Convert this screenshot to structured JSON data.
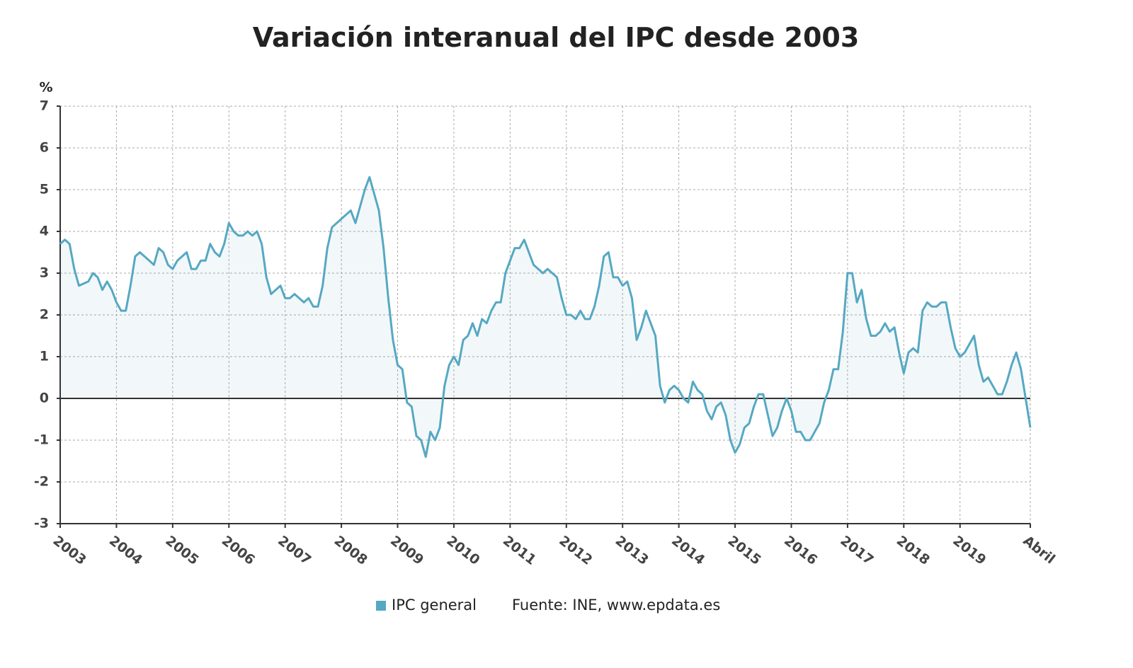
{
  "chart_data": {
    "type": "line",
    "title": "Variación interanual del IPC desde 2003",
    "y_label": "%",
    "source": "Fuente: INE, www.epdata.es",
    "categories": [
      "2003",
      null,
      null,
      null,
      null,
      null,
      null,
      null,
      null,
      null,
      null,
      null,
      "2004",
      null,
      null,
      null,
      null,
      null,
      null,
      null,
      null,
      null,
      null,
      null,
      "2005",
      null,
      null,
      null,
      null,
      null,
      null,
      null,
      null,
      null,
      null,
      null,
      "2006",
      null,
      null,
      null,
      null,
      null,
      null,
      null,
      null,
      null,
      null,
      null,
      "2007",
      null,
      null,
      null,
      null,
      null,
      null,
      null,
      null,
      null,
      null,
      null,
      "2008",
      null,
      null,
      null,
      null,
      null,
      null,
      null,
      null,
      null,
      null,
      null,
      "2009",
      null,
      null,
      null,
      null,
      null,
      null,
      null,
      null,
      null,
      null,
      null,
      "2010",
      null,
      null,
      null,
      null,
      null,
      null,
      null,
      null,
      null,
      null,
      null,
      "2011",
      null,
      null,
      null,
      null,
      null,
      null,
      null,
      null,
      null,
      null,
      null,
      "2012",
      null,
      null,
      null,
      null,
      null,
      null,
      null,
      null,
      null,
      null,
      null,
      "2013",
      null,
      null,
      null,
      null,
      null,
      null,
      null,
      null,
      null,
      null,
      null,
      "2014",
      null,
      null,
      null,
      null,
      null,
      null,
      null,
      null,
      null,
      null,
      null,
      "2015",
      null,
      null,
      null,
      null,
      null,
      null,
      null,
      null,
      null,
      null,
      null,
      "2016",
      null,
      null,
      null,
      null,
      null,
      null,
      null,
      null,
      null,
      null,
      null,
      "2017",
      null,
      null,
      null,
      null,
      null,
      null,
      null,
      null,
      null,
      null,
      null,
      "2018",
      null,
      null,
      null,
      null,
      null,
      null,
      null,
      null,
      null,
      null,
      null,
      "2019",
      null,
      null,
      null,
      null,
      null,
      null,
      null,
      null,
      null,
      null,
      null,
      null,
      null,
      null,
      "Abril"
    ],
    "series": [
      {
        "name": "IPC general",
        "color": "#56a8c2",
        "values": [
          3.7,
          3.8,
          3.7,
          3.1,
          2.7,
          2.75,
          2.8,
          3.0,
          2.9,
          2.6,
          2.8,
          2.6,
          2.3,
          2.1,
          2.1,
          2.7,
          3.4,
          3.5,
          3.4,
          3.3,
          3.2,
          3.6,
          3.5,
          3.2,
          3.1,
          3.3,
          3.4,
          3.5,
          3.1,
          3.1,
          3.3,
          3.3,
          3.7,
          3.5,
          3.4,
          3.7,
          4.2,
          4.0,
          3.9,
          3.9,
          4.0,
          3.9,
          4.0,
          3.7,
          2.9,
          2.5,
          2.6,
          2.7,
          2.4,
          2.4,
          2.5,
          2.4,
          2.3,
          2.4,
          2.2,
          2.2,
          2.7,
          3.6,
          4.1,
          4.2,
          4.3,
          4.4,
          4.5,
          4.2,
          4.6,
          5.0,
          5.3,
          4.9,
          4.5,
          3.6,
          2.4,
          1.4,
          0.8,
          0.7,
          -0.1,
          -0.2,
          -0.9,
          -1.0,
          -1.4,
          -0.8,
          -1.0,
          -0.7,
          0.3,
          0.8,
          1.0,
          0.8,
          1.4,
          1.5,
          1.8,
          1.5,
          1.9,
          1.8,
          2.1,
          2.3,
          2.3,
          3.0,
          3.3,
          3.6,
          3.6,
          3.8,
          3.5,
          3.2,
          3.1,
          3.0,
          3.1,
          3.0,
          2.9,
          2.4,
          2.0,
          2.0,
          1.9,
          2.1,
          1.9,
          1.9,
          2.2,
          2.7,
          3.4,
          3.5,
          2.9,
          2.9,
          2.7,
          2.8,
          2.4,
          1.4,
          1.7,
          2.1,
          1.8,
          1.5,
          0.3,
          -0.1,
          0.2,
          0.3,
          0.2,
          0.0,
          -0.1,
          0.4,
          0.2,
          0.1,
          -0.3,
          -0.5,
          -0.2,
          -0.1,
          -0.4,
          -1.0,
          -1.3,
          -1.1,
          -0.7,
          -0.6,
          -0.2,
          0.1,
          0.1,
          -0.4,
          -0.9,
          -0.7,
          -0.3,
          0.0,
          -0.3,
          -0.8,
          -0.8,
          -1.0,
          -1.0,
          -0.8,
          -0.6,
          -0.1,
          0.2,
          0.7,
          0.7,
          1.6,
          3.0,
          3.0,
          2.3,
          2.6,
          1.9,
          1.5,
          1.5,
          1.6,
          1.8,
          1.6,
          1.7,
          1.1,
          0.6,
          1.1,
          1.2,
          1.1,
          2.1,
          2.3,
          2.2,
          2.2,
          2.3,
          2.3,
          1.7,
          1.2,
          1.0,
          1.1,
          1.3,
          1.5,
          0.8,
          0.4,
          0.5,
          0.3,
          0.1,
          0.1,
          0.4,
          0.8,
          1.1,
          0.7,
          0.0,
          -0.7
        ]
      }
    ],
    "ylim": [
      -3,
      7
    ],
    "yticks": [
      -3,
      -2,
      -1,
      0,
      1,
      2,
      3,
      4,
      5,
      6,
      7
    ],
    "grid": true
  }
}
